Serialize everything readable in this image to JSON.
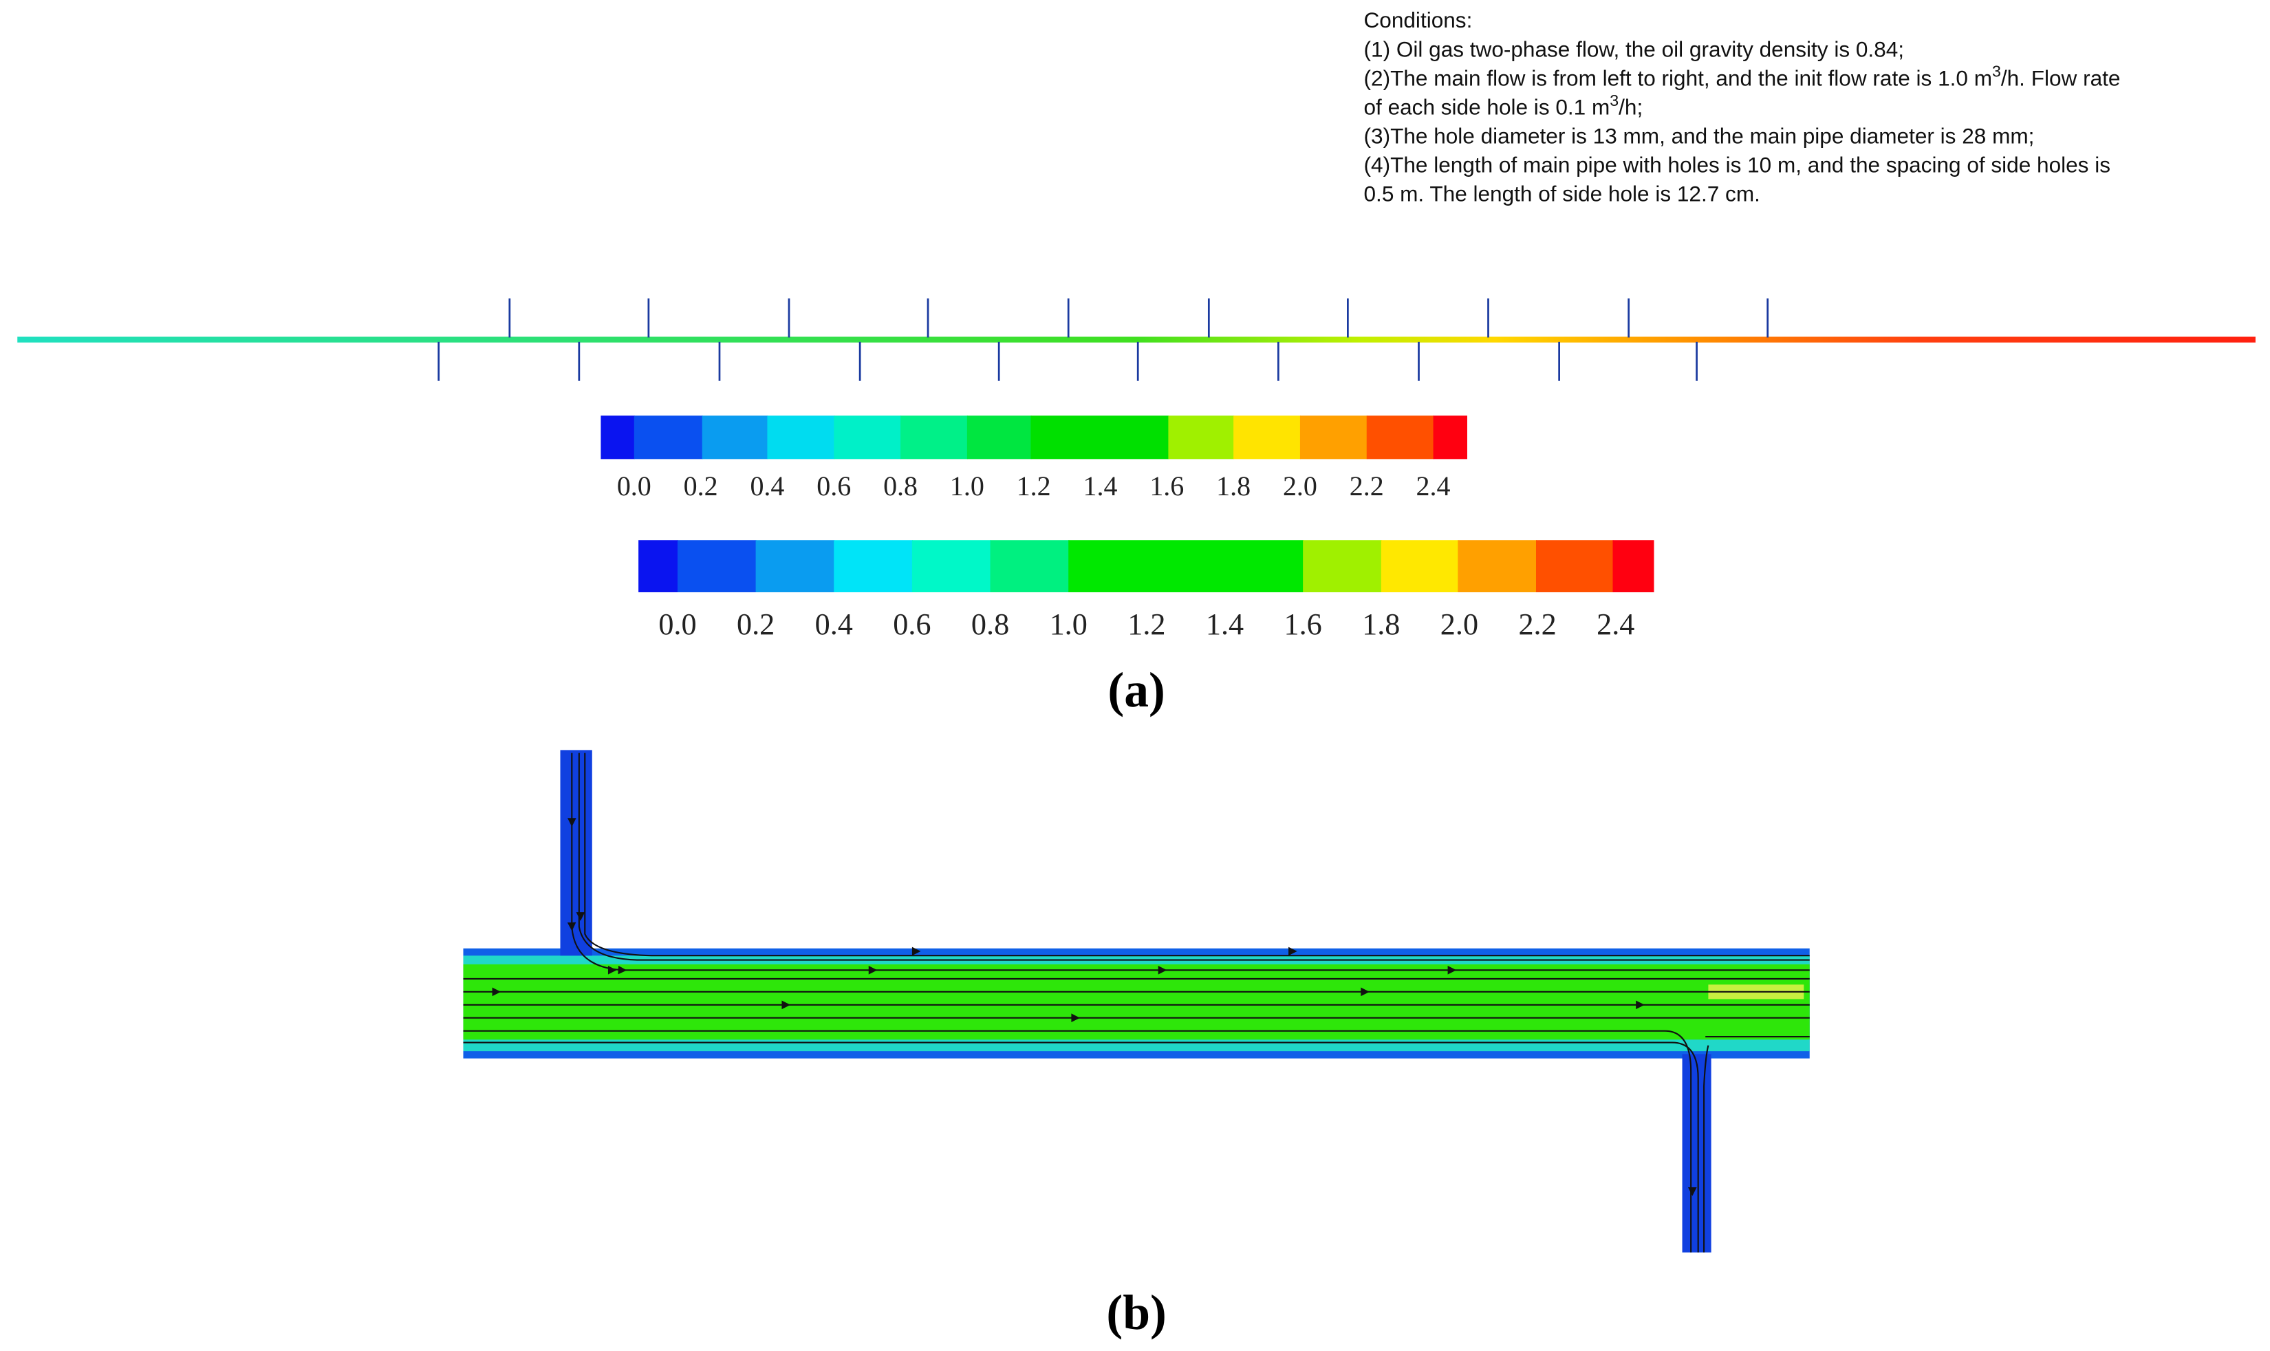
{
  "conditions": {
    "title": "Conditions:",
    "lines": [
      {
        "text": "(1) Oil gas two-phase flow, the oil gravity density is 0.84;"
      },
      {
        "text": "(2)The main flow is from left to right, and the init flow rate is 1.0 m",
        "sup": "3",
        "after": "/h. Flow rate"
      },
      {
        "text": "of each side hole is 0.1 m",
        "sup": "3",
        "after": "/h;"
      },
      {
        "text": "(3)The hole diameter is 13 mm, and the main pipe diameter is 28 mm;"
      },
      {
        "text": "(4)The length of main pipe with holes is 10 m, and the spacing of side holes is"
      },
      {
        "text": "0.5 m. The length of side hole is 12.7 cm."
      }
    ]
  },
  "colorbars": [
    {
      "labels": [
        "0.0",
        "0.2",
        "0.4",
        "0.6",
        "0.8",
        "1.0",
        "1.2",
        "1.4",
        "1.6",
        "1.8",
        "2.0",
        "2.2",
        "2.4"
      ]
    },
    {
      "labels": [
        "0.0",
        "0.2",
        "0.4",
        "0.6",
        "0.8",
        "1.0",
        "1.2",
        "1.4",
        "1.6",
        "1.8",
        "2.0",
        "2.2",
        "2.4"
      ]
    }
  ],
  "panels": {
    "a": "(a)",
    "b": "(b)"
  }
}
